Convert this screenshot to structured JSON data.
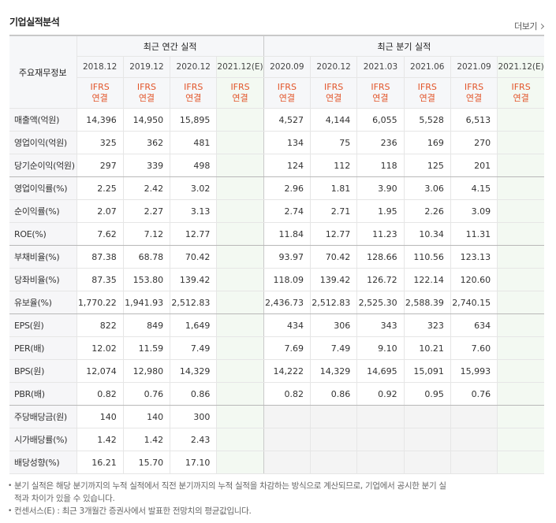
{
  "title": "기업실적분석",
  "more": "더보기",
  "table": {
    "corner": "주요재무정보",
    "groups": [
      "최근 연간 실적",
      "최근 분기 실적"
    ],
    "periods": [
      "2018.12",
      "2019.12",
      "2020.12",
      "2021.12(E)",
      "2020.09",
      "2020.12",
      "2021.03",
      "2021.06",
      "2021.09",
      "2021.12(E)"
    ],
    "basis": [
      {
        "standard": "IFRS",
        "scope": "연결"
      },
      {
        "standard": "IFRS",
        "scope": "연결"
      },
      {
        "standard": "IFRS",
        "scope": "연결"
      },
      {
        "standard": "IFRS",
        "scope": "연결"
      },
      {
        "standard": "IFRS",
        "scope": "연결"
      },
      {
        "standard": "IFRS",
        "scope": "연결"
      },
      {
        "standard": "IFRS",
        "scope": "연결"
      },
      {
        "standard": "IFRS",
        "scope": "연결"
      },
      {
        "standard": "IFRS",
        "scope": "연결"
      },
      {
        "standard": "IFRS",
        "scope": "연결"
      }
    ],
    "rows": [
      {
        "label": "매출액(억원)",
        "cells": [
          "14,396",
          "14,950",
          "15,895",
          null,
          "4,527",
          "4,144",
          "6,055",
          "5,528",
          "6,513",
          null
        ]
      },
      {
        "label": "영업이익(억원)",
        "cells": [
          "325",
          "362",
          "481",
          null,
          "134",
          "75",
          "236",
          "169",
          "270",
          null
        ]
      },
      {
        "label": "당기순이익(억원)",
        "cells": [
          "297",
          "339",
          "498",
          null,
          "124",
          "112",
          "118",
          "125",
          "201",
          null
        ]
      },
      {
        "label": "영업이익률(%)",
        "cells": [
          "2.25",
          "2.42",
          "3.02",
          null,
          "2.96",
          "1.81",
          "3.90",
          "3.06",
          "4.15",
          null
        ]
      },
      {
        "label": "순이익률(%)",
        "cells": [
          "2.07",
          "2.27",
          "3.13",
          null,
          "2.74",
          "2.71",
          "1.95",
          "2.26",
          "3.09",
          null
        ]
      },
      {
        "label": "ROE(%)",
        "cells": [
          "7.62",
          "7.12",
          "12.77",
          null,
          "11.84",
          "12.77",
          "11.23",
          "10.34",
          "11.31",
          null
        ]
      },
      {
        "label": "부채비율(%)",
        "cells": [
          "87.38",
          "68.78",
          "70.42",
          null,
          "93.97",
          "70.42",
          "128.66",
          "110.56",
          "123.13",
          null
        ]
      },
      {
        "label": "당좌비율(%)",
        "cells": [
          "87.35",
          "153.80",
          "139.42",
          null,
          "118.09",
          "139.42",
          "126.72",
          "122.14",
          "120.60",
          null
        ]
      },
      {
        "label": "유보율(%)",
        "cells": [
          "1,770.22",
          "1,941.93",
          "2,512.83",
          null,
          "2,436.73",
          "2,512.83",
          "2,525.30",
          "2,588.39",
          "2,740.15",
          null
        ]
      },
      {
        "label": "EPS(원)",
        "cells": [
          "822",
          "849",
          "1,649",
          null,
          "434",
          "306",
          "343",
          "323",
          "634",
          null
        ]
      },
      {
        "label": "PER(배)",
        "cells": [
          "12.02",
          "11.59",
          "7.49",
          null,
          "7.69",
          "7.49",
          "9.10",
          "10.21",
          "7.60",
          null
        ]
      },
      {
        "label": "BPS(원)",
        "cells": [
          "12,074",
          "12,980",
          "14,329",
          null,
          "14,222",
          "14,329",
          "14,695",
          "15,091",
          "15,993",
          null
        ]
      },
      {
        "label": "PBR(배)",
        "cells": [
          "0.82",
          "0.76",
          "0.86",
          null,
          "0.82",
          "0.86",
          "0.92",
          "0.95",
          "0.76",
          null
        ]
      },
      {
        "label": "주당배당금(원)",
        "cells": [
          "140",
          "140",
          "300",
          null,
          null,
          null,
          null,
          null,
          null,
          null
        ]
      },
      {
        "label": "시가배당률(%)",
        "cells": [
          "1.42",
          "1.42",
          "2.43",
          null,
          null,
          null,
          null,
          null,
          null,
          null
        ]
      },
      {
        "label": "배당성향(%)",
        "cells": [
          "16.21",
          "15.70",
          "17.10",
          null,
          null,
          null,
          null,
          null,
          null,
          null
        ]
      }
    ]
  },
  "notes": [
    "분기 실적은 해당 분기까지의 누적 실적에서 직전 분기까지의 누적 실적을 차감하는 방식으로 계산되므로, 기업에서 공시한 분기 실적과 차이가 있을 수 있습니다.",
    "컨센서스(E) : 최근 3개월간 증권사에서 발표한 전망치의 평균값입니다."
  ]
}
